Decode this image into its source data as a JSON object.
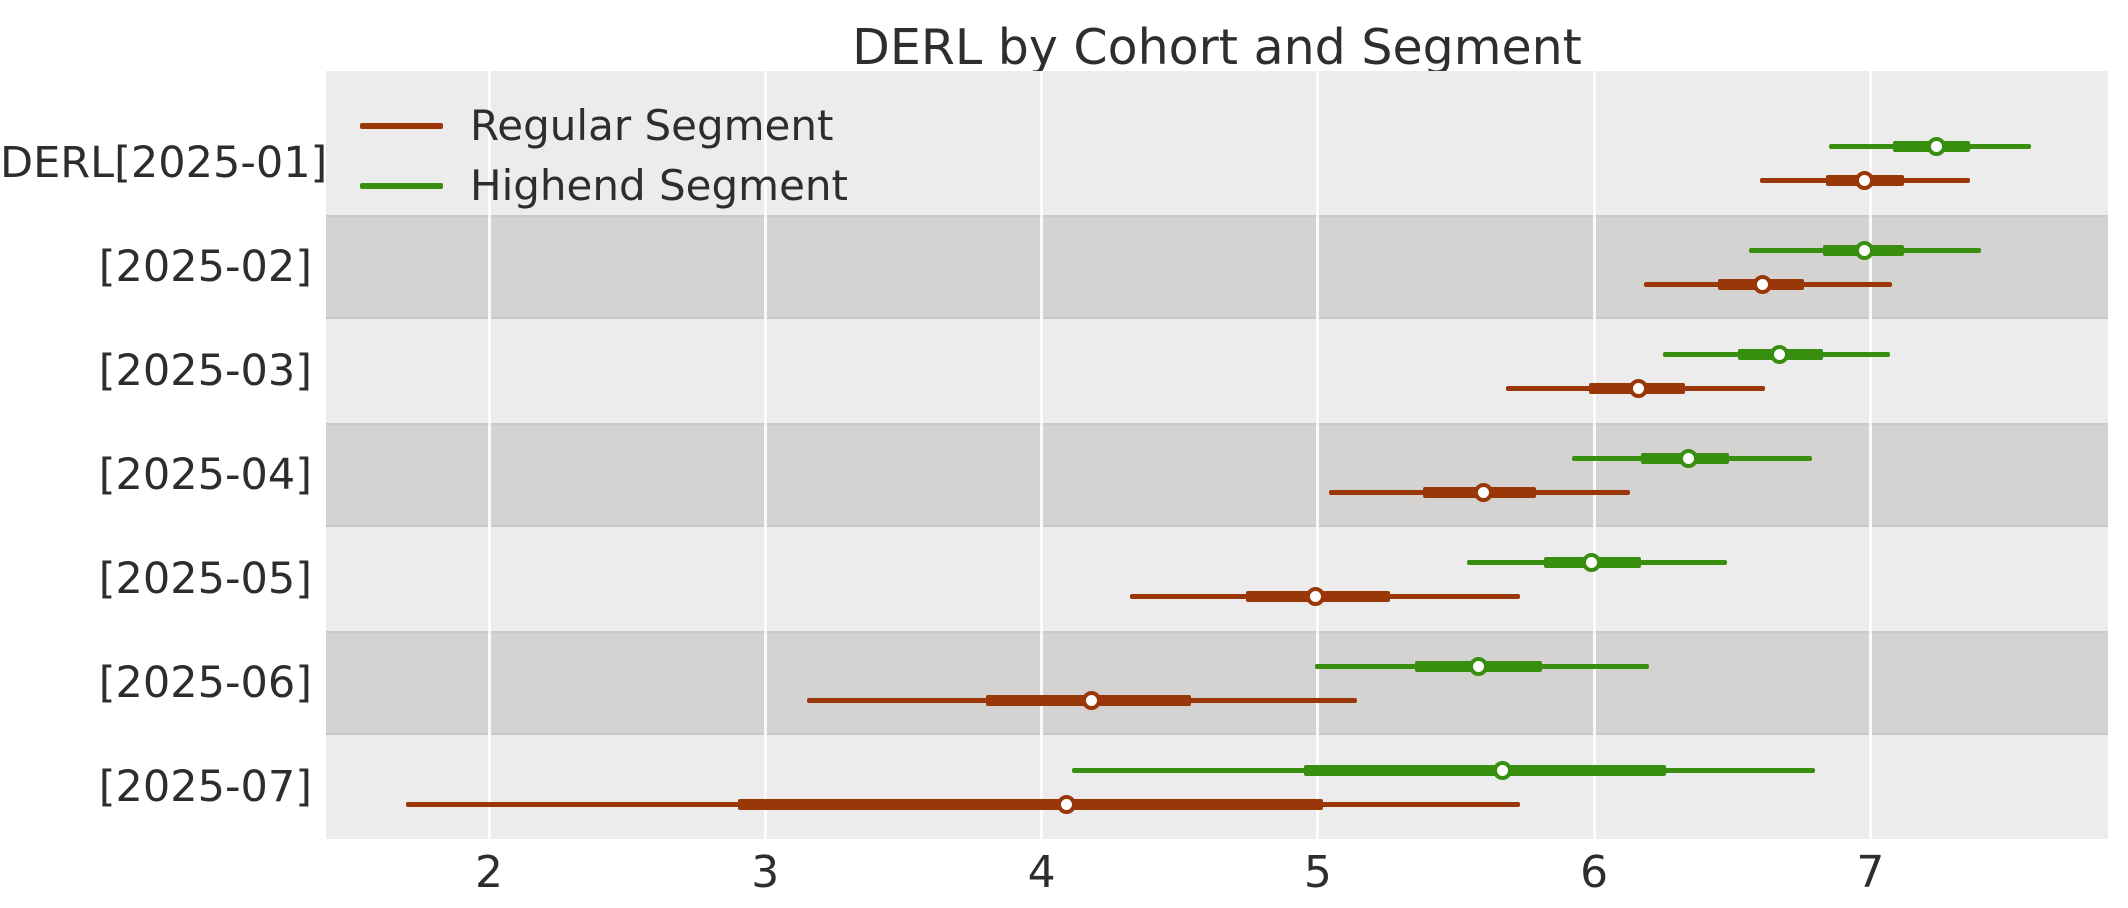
{
  "title": "DERL by Cohort and Segment",
  "legend": {
    "items": [
      {
        "label": "Regular Segment",
        "color": "#993708"
      },
      {
        "label": "Highend Segment",
        "color": "#388E0E"
      }
    ]
  },
  "chart_data": {
    "type": "forest-interval",
    "title": "DERL by Cohort and Segment",
    "xlabel": "",
    "ylabel": "",
    "xlim": [
      1.41,
      7.86
    ],
    "x_ticks": [
      2,
      3,
      4,
      5,
      6,
      7
    ],
    "grid": "vertical-white-gridlines",
    "legend_position": "upper-left-inside",
    "plot_bg_color": "#edecec",
    "shaded_band_color": "#d4d3d2",
    "categories": [
      "DERL[2025-01]",
      "[2025-02]",
      "[2025-03]",
      "[2025-04]",
      "[2025-05]",
      "[2025-06]",
      "[2025-07]"
    ],
    "shaded_rows": [
      "[2025-02]",
      "[2025-04]",
      "[2025-06]"
    ],
    "interval_semantics": {
      "outer": "wide credible interval (thin line)",
      "inner": "central interval (thick line)",
      "median": "white circle marker"
    },
    "series": [
      {
        "name": "Highend Segment",
        "color": "#388E0E",
        "position_in_row": "upper",
        "points": [
          {
            "cohort": "DERL[2025-01]",
            "outer": [
              6.85,
              7.58
            ],
            "inner": [
              7.08,
              7.36
            ],
            "median": 7.24
          },
          {
            "cohort": "[2025-02]",
            "outer": [
              6.56,
              7.4
            ],
            "inner": [
              6.83,
              7.12
            ],
            "median": 6.98
          },
          {
            "cohort": "[2025-03]",
            "outer": [
              6.25,
              7.07
            ],
            "inner": [
              6.52,
              6.83
            ],
            "median": 6.67
          },
          {
            "cohort": "[2025-04]",
            "outer": [
              5.92,
              6.79
            ],
            "inner": [
              6.17,
              6.49
            ],
            "median": 6.34
          },
          {
            "cohort": "[2025-05]",
            "outer": [
              5.54,
              6.48
            ],
            "inner": [
              5.82,
              6.17
            ],
            "median": 5.99
          },
          {
            "cohort": "[2025-06]",
            "outer": [
              4.99,
              6.2
            ],
            "inner": [
              5.35,
              5.81
            ],
            "median": 5.58
          },
          {
            "cohort": "[2025-07]",
            "outer": [
              4.11,
              6.8
            ],
            "inner": [
              4.95,
              6.26
            ],
            "median": 5.67
          }
        ]
      },
      {
        "name": "Regular Segment",
        "color": "#993708",
        "position_in_row": "lower",
        "points": [
          {
            "cohort": "DERL[2025-01]",
            "outer": [
              6.6,
              7.36
            ],
            "inner": [
              6.84,
              7.12
            ],
            "median": 6.98
          },
          {
            "cohort": "[2025-02]",
            "outer": [
              6.18,
              7.08
            ],
            "inner": [
              6.45,
              6.76
            ],
            "median": 6.61
          },
          {
            "cohort": "[2025-03]",
            "outer": [
              5.68,
              6.62
            ],
            "inner": [
              5.98,
              6.33
            ],
            "median": 6.16
          },
          {
            "cohort": "[2025-04]",
            "outer": [
              5.04,
              6.13
            ],
            "inner": [
              5.38,
              5.79
            ],
            "median": 5.6
          },
          {
            "cohort": "[2025-05]",
            "outer": [
              4.32,
              5.73
            ],
            "inner": [
              4.74,
              5.26
            ],
            "median": 4.99
          },
          {
            "cohort": "[2025-06]",
            "outer": [
              3.15,
              5.14
            ],
            "inner": [
              3.8,
              4.54
            ],
            "median": 4.18
          },
          {
            "cohort": "[2025-07]",
            "outer": [
              1.7,
              5.73
            ],
            "inner": [
              2.9,
              5.02
            ],
            "median": 4.09
          }
        ]
      }
    ]
  }
}
